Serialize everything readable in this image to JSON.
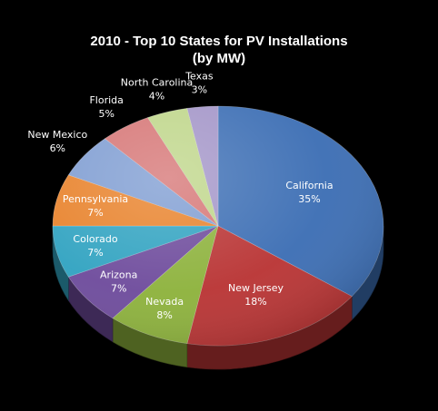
{
  "chart_data": {
    "type": "pie",
    "title": "2010 - Top 10 States for PV Installations",
    "subtitle": "(by MW)",
    "categories": [
      "California",
      "New Jersey",
      "Nevada",
      "Arizona",
      "Colorado",
      "Pennsylvania",
      "New Mexico",
      "Florida",
      "North Carolina",
      "Texas"
    ],
    "values": [
      35,
      18,
      8,
      7,
      7,
      7,
      6,
      5,
      4,
      3
    ],
    "value_labels": [
      "35%",
      "18%",
      "8%",
      "7%",
      "7%",
      "7%",
      "6%",
      "5%",
      "4%",
      "3%"
    ],
    "colors": [
      "#3c6eb4",
      "#b93434",
      "#8db23c",
      "#6e4b9c",
      "#31a3c1",
      "#e8822b",
      "#7f9dd2",
      "#d67676",
      "#bfd68a",
      "#a395c8"
    ],
    "label_colors": [
      "#ffffff",
      "#ffffff",
      "#ffffff",
      "#ffffff",
      "#ffffff",
      "#ffffff",
      "#ffffff",
      "#ffffff",
      "#ffffff",
      "#ffffff"
    ],
    "legend": "none",
    "style": "3d-tilted"
  }
}
